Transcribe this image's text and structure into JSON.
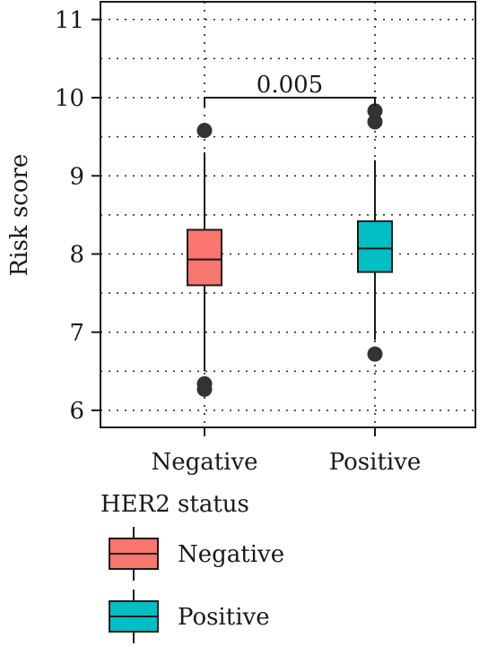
{
  "chart_data": {
    "type": "box",
    "ylabel": "Risk score",
    "ylim": [
      5.75,
      11.2
    ],
    "yticks": [
      6,
      7,
      8,
      9,
      10,
      11
    ],
    "categories": [
      "Negative",
      "Positive"
    ],
    "grid": true,
    "boxes": [
      {
        "name": "Negative",
        "color": "#F8766D",
        "q1": 7.6,
        "median": 7.93,
        "q3": 8.31,
        "whisker_low": 6.5,
        "whisker_high": 9.3,
        "outliers": [
          9.58,
          6.34,
          6.27
        ]
      },
      {
        "name": "Positive",
        "color": "#00BFC4",
        "q1": 7.77,
        "median": 8.07,
        "q3": 8.42,
        "whisker_low": 6.9,
        "whisker_high": 9.2,
        "outliers": [
          9.83,
          9.69,
          6.72
        ]
      }
    ],
    "annotation": {
      "text": "0.005",
      "y": 10.0
    },
    "legend": {
      "title": "HER2 status",
      "position": "bottom-left",
      "items": [
        {
          "label": "Negative",
          "color": "#F8766D"
        },
        {
          "label": "Positive",
          "color": "#00BFC4"
        }
      ]
    }
  }
}
